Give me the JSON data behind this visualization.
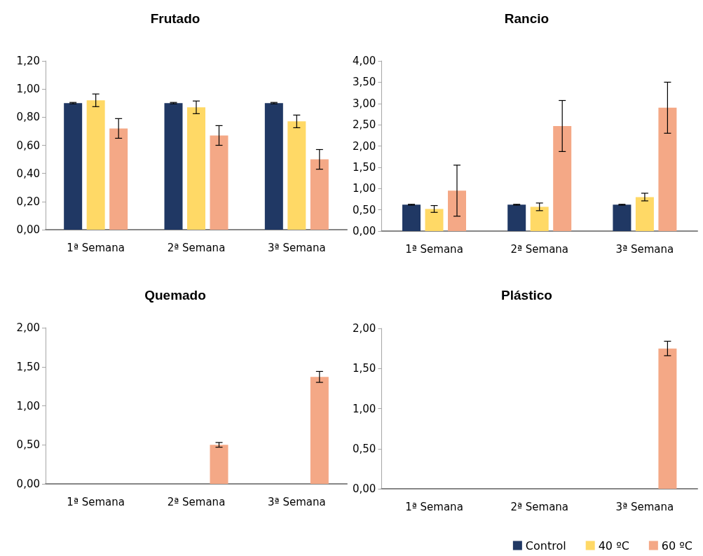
{
  "chart_data": [
    {
      "type": "bar",
      "title": "Frutado",
      "categories": [
        "1ª Semana",
        "2ª Semana",
        "3ª Semana"
      ],
      "series": [
        {
          "color": "#203864",
          "values": [
            0.9,
            0.9,
            0.9
          ],
          "errors": [
            0.005,
            0.005,
            0.005
          ]
        },
        {
          "color": "#ffd966",
          "values": [
            0.92,
            0.87,
            0.77
          ],
          "errors": [
            0.045,
            0.045,
            0.045
          ]
        },
        {
          "color": "#f4a886",
          "values": [
            0.72,
            0.67,
            0.5
          ],
          "errors": [
            0.07,
            0.07,
            0.07
          ]
        }
      ],
      "ylim": [
        0,
        1.2
      ],
      "yticks": [
        {
          "value": 0,
          "label": "0,00"
        },
        {
          "value": 0.2,
          "label": "0,20"
        },
        {
          "value": 0.4,
          "label": "0,40"
        },
        {
          "value": 0.6,
          "label": "0,60"
        },
        {
          "value": 0.8,
          "label": "0,80"
        },
        {
          "value": 1.0,
          "label": "1,00"
        },
        {
          "value": 1.2,
          "label": "1,20"
        }
      ],
      "grid": false,
      "legend": false
    },
    {
      "type": "bar",
      "title": "Rancio",
      "categories": [
        "1ª Semana",
        "2ª Semana",
        "3ª Semana"
      ],
      "series": [
        {
          "color": "#203864",
          "values": [
            0.62,
            0.62,
            0.62
          ],
          "errors": [
            0.01,
            0.01,
            0.01
          ]
        },
        {
          "color": "#ffd966",
          "values": [
            0.52,
            0.57,
            0.8
          ],
          "errors": [
            0.08,
            0.09,
            0.09
          ]
        },
        {
          "color": "#f4a886",
          "values": [
            0.95,
            2.47,
            2.9
          ],
          "errors": [
            0.6,
            0.6,
            0.6
          ]
        }
      ],
      "ylim": [
        0,
        4
      ],
      "yticks": [
        {
          "value": 0,
          "label": "0,00"
        },
        {
          "value": 0.5,
          "label": "0,50"
        },
        {
          "value": 1,
          "label": "1,00"
        },
        {
          "value": 1.5,
          "label": "1,50"
        },
        {
          "value": 2,
          "label": "2,00"
        },
        {
          "value": 2.5,
          "label": "2,50"
        },
        {
          "value": 3,
          "label": "3,00"
        },
        {
          "value": 3.5,
          "label": "3,50"
        },
        {
          "value": 4,
          "label": "4,00"
        }
      ],
      "grid": false,
      "legend": false
    },
    {
      "type": "bar",
      "title": "Quemado",
      "categories": [
        "1ª Semana",
        "2ª Semana",
        "3ª Semana"
      ],
      "series": [
        {
          "color": "#203864",
          "values": [
            0,
            0,
            0
          ]
        },
        {
          "color": "#ffd966",
          "values": [
            0,
            0,
            0
          ]
        },
        {
          "color": "#f4a886",
          "values": [
            0,
            0.5,
            1.37
          ],
          "errors": [
            null,
            0.03,
            0.07
          ]
        }
      ],
      "ylim": [
        0,
        2
      ],
      "yticks": [
        {
          "value": 0,
          "label": "0,00"
        },
        {
          "value": 0.5,
          "label": "0,50"
        },
        {
          "value": 1,
          "label": "1,00"
        },
        {
          "value": 1.5,
          "label": "1,50"
        },
        {
          "value": 2,
          "label": "2,00"
        }
      ],
      "grid": false,
      "legend": false
    },
    {
      "type": "bar",
      "title": "Plástico",
      "categories": [
        "1ª Semana",
        "2ª Semana",
        "3ª Semana"
      ],
      "series": [
        {
          "name": "Control",
          "color": "#203864",
          "values": [
            0,
            0,
            0
          ]
        },
        {
          "name": "40 ºC",
          "color": "#ffd966",
          "values": [
            0,
            0,
            0
          ]
        },
        {
          "name": "60 ºC",
          "color": "#f4a886",
          "values": [
            0,
            0,
            1.75
          ],
          "errors": [
            null,
            null,
            0.09
          ]
        }
      ],
      "ylim": [
        0,
        2
      ],
      "yticks": [
        {
          "value": 0,
          "label": "0,00"
        },
        {
          "value": 0.5,
          "label": "0,50"
        },
        {
          "value": 1,
          "label": "1,00"
        },
        {
          "value": 1.5,
          "label": "1,50"
        },
        {
          "value": 2,
          "label": "2,00"
        }
      ],
      "grid": false,
      "legend": "bottom right"
    }
  ]
}
